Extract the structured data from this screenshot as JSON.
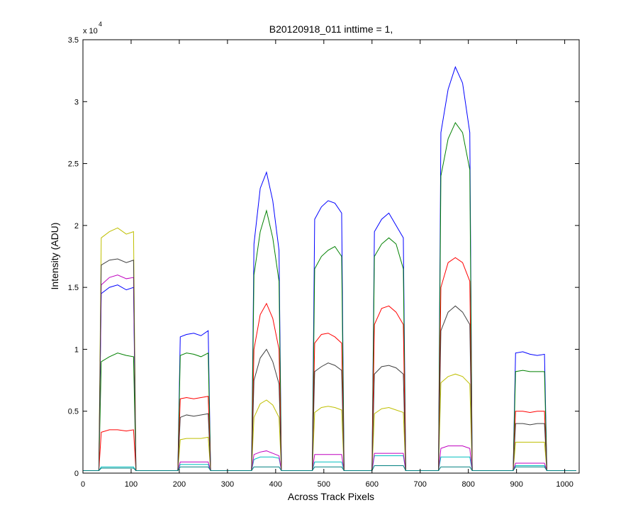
{
  "chart_data": {
    "type": "line",
    "title": "B20120918_011 inttime = 1,",
    "x_label": "Across Track Pixels",
    "y_label": "Intensity (ADU)",
    "y_multiplier": {
      "base": "x 10",
      "exponent": "4"
    },
    "xlim": [
      0,
      1030
    ],
    "ylim": [
      0,
      35000
    ],
    "xticks": [
      0,
      100,
      200,
      300,
      400,
      500,
      600,
      700,
      800,
      900,
      1000
    ],
    "yticks": [
      0,
      {
        "value": 5000,
        "label": "0.5"
      },
      {
        "value": 10000,
        "label": "1"
      },
      {
        "value": 15000,
        "label": "1.5"
      },
      {
        "value": 20000,
        "label": "2"
      },
      {
        "value": 25000,
        "label": "2.5"
      },
      {
        "value": 30000,
        "label": "3"
      },
      {
        "value": 35000,
        "label": "3.5"
      }
    ],
    "x": [
      0,
      33,
      38,
      55,
      72,
      90,
      105,
      110,
      197,
      202,
      215,
      230,
      245,
      260,
      265,
      350,
      355,
      368,
      381,
      394,
      407,
      412,
      476,
      481,
      495,
      509,
      523,
      537,
      542,
      600,
      605,
      620,
      635,
      650,
      665,
      670,
      738,
      743,
      758,
      773,
      788,
      803,
      808,
      893,
      898,
      913,
      928,
      943,
      958,
      963,
      1024
    ],
    "series": [
      {
        "color": "#0000ff",
        "values": [
          200,
          200,
          14500,
          15000,
          15200,
          14800,
          15000,
          200,
          200,
          11000,
          11200,
          11300,
          11100,
          11500,
          200,
          200,
          18500,
          23000,
          24300,
          22000,
          18000,
          200,
          200,
          20500,
          21500,
          22000,
          21800,
          21000,
          200,
          200,
          19500,
          20500,
          21000,
          20000,
          19000,
          200,
          200,
          27500,
          31000,
          32800,
          31500,
          27500,
          200,
          200,
          9700,
          9800,
          9600,
          9500,
          9600,
          200,
          200
        ]
      },
      {
        "color": "#008000",
        "values": [
          200,
          200,
          9000,
          9400,
          9700,
          9500,
          9400,
          200,
          200,
          9500,
          9700,
          9600,
          9400,
          9700,
          200,
          200,
          16000,
          19500,
          21200,
          19000,
          15500,
          200,
          200,
          16500,
          17500,
          18000,
          18300,
          17500,
          200,
          200,
          17500,
          18500,
          19000,
          18500,
          16500,
          200,
          200,
          24000,
          27000,
          28300,
          27500,
          24500,
          200,
          200,
          8200,
          8300,
          8200,
          8200,
          8200,
          200,
          200
        ]
      },
      {
        "color": "#ff0000",
        "values": [
          200,
          200,
          3300,
          3500,
          3500,
          3400,
          3500,
          200,
          200,
          6000,
          6100,
          6000,
          6100,
          6200,
          200,
          200,
          10000,
          12800,
          13700,
          12500,
          10000,
          200,
          200,
          10500,
          11200,
          11300,
          11000,
          10500,
          200,
          200,
          12000,
          13300,
          13500,
          13000,
          12000,
          200,
          200,
          15000,
          17000,
          17400,
          17000,
          15500,
          200,
          200,
          5000,
          5000,
          4900,
          5000,
          5000,
          200,
          200
        ]
      },
      {
        "color": "#00bfbf",
        "values": [
          200,
          200,
          500,
          500,
          500,
          500,
          500,
          200,
          200,
          700,
          700,
          700,
          700,
          700,
          200,
          200,
          1100,
          1300,
          1300,
          1300,
          1200,
          200,
          200,
          900,
          900,
          900,
          900,
          900,
          200,
          200,
          1400,
          1400,
          1400,
          1400,
          1400,
          200,
          200,
          1300,
          1300,
          1300,
          1300,
          1300,
          200,
          200,
          600,
          600,
          600,
          600,
          600,
          200,
          200
        ]
      },
      {
        "color": "#bf00bf",
        "values": [
          200,
          200,
          15200,
          15800,
          16000,
          15700,
          15800,
          200,
          200,
          900,
          900,
          900,
          900,
          900,
          200,
          200,
          1500,
          1700,
          1800,
          1600,
          1400,
          200,
          200,
          1500,
          1500,
          1500,
          1500,
          1500,
          200,
          200,
          1600,
          1600,
          1600,
          1600,
          1600,
          200,
          200,
          2000,
          2200,
          2200,
          2200,
          2000,
          200,
          200,
          800,
          800,
          800,
          800,
          800,
          200,
          200
        ]
      },
      {
        "color": "#bfbf00",
        "values": [
          200,
          200,
          19000,
          19500,
          19800,
          19300,
          19500,
          200,
          200,
          2700,
          2800,
          2800,
          2800,
          2900,
          200,
          200,
          4500,
          5600,
          5900,
          5500,
          4500,
          200,
          200,
          4900,
          5300,
          5400,
          5300,
          5100,
          200,
          200,
          4800,
          5200,
          5300,
          5100,
          4900,
          200,
          200,
          7300,
          7800,
          8000,
          7800,
          7200,
          200,
          200,
          2500,
          2500,
          2500,
          2500,
          2500,
          200,
          200
        ]
      },
      {
        "color": "#404040",
        "values": [
          200,
          200,
          16800,
          17200,
          17300,
          17000,
          17200,
          200,
          200,
          4500,
          4700,
          4600,
          4700,
          4800,
          200,
          200,
          7500,
          9300,
          10000,
          9000,
          7200,
          200,
          200,
          8200,
          8600,
          8900,
          8700,
          8300,
          200,
          200,
          8000,
          8600,
          8700,
          8500,
          8000,
          200,
          200,
          11500,
          13000,
          13500,
          13000,
          12000,
          200,
          200,
          4000,
          4000,
          3900,
          4000,
          4000,
          200,
          200
        ]
      },
      {
        "color": "#008080",
        "values": [
          200,
          200,
          400,
          400,
          400,
          400,
          400,
          200,
          200,
          500,
          500,
          500,
          500,
          500,
          200,
          200,
          500,
          500,
          500,
          500,
          500,
          200,
          200,
          500,
          500,
          500,
          500,
          500,
          200,
          200,
          600,
          600,
          600,
          600,
          600,
          200,
          200,
          500,
          500,
          500,
          500,
          500,
          200,
          200,
          500,
          500,
          500,
          500,
          500,
          200,
          200
        ]
      }
    ]
  }
}
